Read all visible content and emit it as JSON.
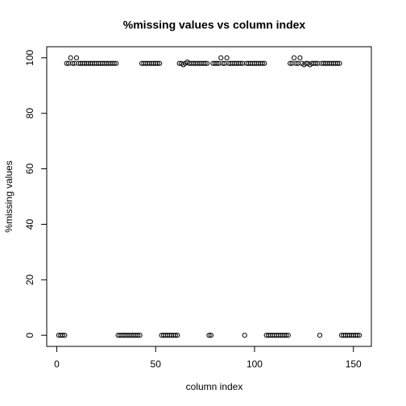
{
  "chart_data": {
    "type": "scatter",
    "title": "%missing values vs column index",
    "x_label": "column index",
    "y_label": "%missing values",
    "x": [
      1,
      2,
      3,
      4,
      5,
      6,
      7,
      8,
      9,
      10,
      11,
      12,
      13,
      14,
      15,
      16,
      17,
      18,
      19,
      20,
      21,
      22,
      23,
      24,
      25,
      26,
      27,
      28,
      29,
      30,
      31,
      32,
      33,
      34,
      35,
      36,
      37,
      38,
      39,
      40,
      41,
      42,
      43,
      44,
      45,
      46,
      47,
      48,
      49,
      50,
      51,
      52,
      53,
      54,
      55,
      56,
      57,
      58,
      59,
      60,
      61,
      62,
      63,
      64,
      65,
      66,
      67,
      68,
      69,
      70,
      71,
      72,
      73,
      74,
      75,
      76,
      77,
      78,
      79,
      80,
      81,
      82,
      83,
      84,
      85,
      86,
      87,
      88,
      89,
      90,
      91,
      92,
      93,
      94,
      95,
      96,
      97,
      98,
      99,
      100,
      101,
      102,
      103,
      104,
      105,
      106,
      107,
      108,
      109,
      110,
      111,
      112,
      113,
      114,
      115,
      116,
      117,
      118,
      119,
      120,
      121,
      122,
      123,
      124,
      125,
      126,
      127,
      128,
      129,
      130,
      131,
      132,
      133,
      134,
      135,
      136,
      137,
      138,
      139,
      140,
      141,
      142,
      143,
      144,
      145,
      146,
      147,
      148,
      149,
      150,
      151,
      152,
      153
    ],
    "values": [
      0,
      0,
      0,
      0,
      98,
      98,
      100,
      98,
      98,
      100,
      98,
      98,
      98,
      98,
      98,
      98,
      98,
      98,
      98,
      98,
      98,
      98,
      98,
      98,
      98,
      98,
      98,
      98,
      98,
      98,
      0,
      0,
      0,
      0,
      0,
      0,
      0,
      0,
      0,
      0,
      0,
      0,
      98,
      98,
      98,
      98,
      98,
      98,
      98,
      98,
      98,
      98,
      0,
      0,
      0,
      0,
      0,
      0,
      0,
      0,
      0,
      98,
      98,
      97.5,
      98,
      98.5,
      98,
      98,
      98,
      98,
      98,
      98,
      98,
      98,
      98,
      98,
      0,
      0,
      98,
      98,
      98,
      98,
      100,
      98,
      98,
      100,
      98,
      98,
      98,
      98,
      98,
      98,
      98,
      98,
      0,
      98,
      98,
      98,
      98,
      98,
      98,
      98,
      98,
      98,
      98,
      0,
      0,
      0,
      0,
      0,
      0,
      0,
      0,
      0,
      0,
      0,
      0,
      98,
      98,
      100,
      98,
      98,
      100,
      98,
      97.5,
      98,
      98,
      97.5,
      98,
      98,
      98,
      98,
      0,
      98,
      98,
      98,
      98,
      98,
      98,
      98,
      98,
      98,
      98,
      0,
      0,
      0,
      0,
      0,
      0,
      0,
      0,
      0,
      0
    ],
    "color": "#000000",
    "xlim": [
      -5.08,
      159.08
    ],
    "ylim": [
      -4,
      104
    ],
    "xticks": [
      0,
      50,
      100,
      150
    ],
    "yticks": [
      0,
      20,
      40,
      60,
      80,
      100
    ]
  }
}
